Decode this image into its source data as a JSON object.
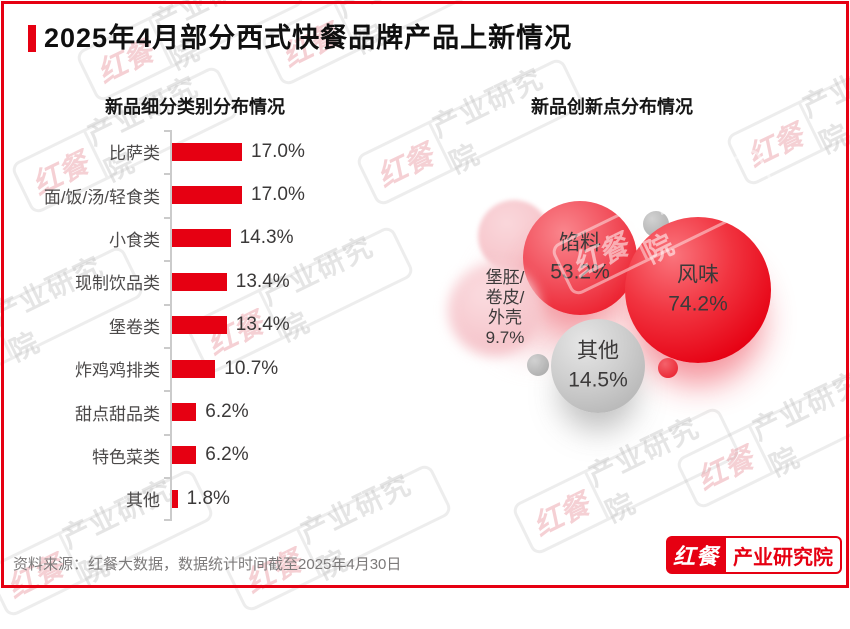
{
  "page": {
    "title": "2025年4月部分西式快餐品牌产品上新情况",
    "source_note": "资料来源：红餐大数据，数据统计时间截至2025年4月30日",
    "logo": {
      "brand": "红餐",
      "unit": "产业研究院"
    },
    "watermark": {
      "brand": "红餐",
      "unit": "产业研究院"
    }
  },
  "colors": {
    "accent_red": "#e60012",
    "bar_red": "#e60012",
    "bubble_red": "#e60012",
    "bubble_gray": "#bdbdbd",
    "bubble_pink": "#f6c5cb",
    "axis_gray": "#cbcbcb",
    "text_dark": "#3b3939",
    "category_text": "#4c4a4a",
    "source_text": "#7c7a7a"
  },
  "chart_data": [
    {
      "type": "bar",
      "orientation": "horizontal",
      "title": "新品细分类别分布情况",
      "categories": [
        "比萨类",
        "面/饭/汤/轻食类",
        "小食类",
        "现制饮品类",
        "堡卷类",
        "炸鸡鸡排类",
        "甜点甜品类",
        "特色菜类",
        "其他"
      ],
      "values": [
        17.0,
        17.0,
        14.3,
        13.4,
        13.4,
        10.7,
        6.2,
        6.2,
        1.8
      ],
      "value_labels": [
        "17.0%",
        "17.0%",
        "14.3%",
        "13.4%",
        "13.4%",
        "10.7%",
        "6.2%",
        "6.2%",
        "1.8%"
      ],
      "unit": "%",
      "xlim": [
        0,
        20
      ],
      "grid": false,
      "value_axis_visible": false
    },
    {
      "type": "bubble",
      "title": "新品创新点分布情况",
      "points": [
        {
          "label": "风味",
          "value": 74.2,
          "display": "74.2%",
          "lines": [
            "风味",
            "74.2%"
          ],
          "color": "red"
        },
        {
          "label": "馅料",
          "value": 53.2,
          "display": "53.2%",
          "lines": [
            "馅料",
            "53.2%"
          ],
          "color": "red"
        },
        {
          "label": "其他",
          "value": 14.5,
          "display": "14.5%",
          "lines": [
            "其他",
            "14.5%"
          ],
          "color": "gray"
        },
        {
          "label": "堡胚/卷皮/外壳",
          "value": 9.7,
          "display": "9.7%",
          "lines": [
            "堡胚/",
            "卷皮/",
            "外壳",
            "9.7%"
          ],
          "color": "pink"
        }
      ],
      "legend": "none"
    }
  ]
}
